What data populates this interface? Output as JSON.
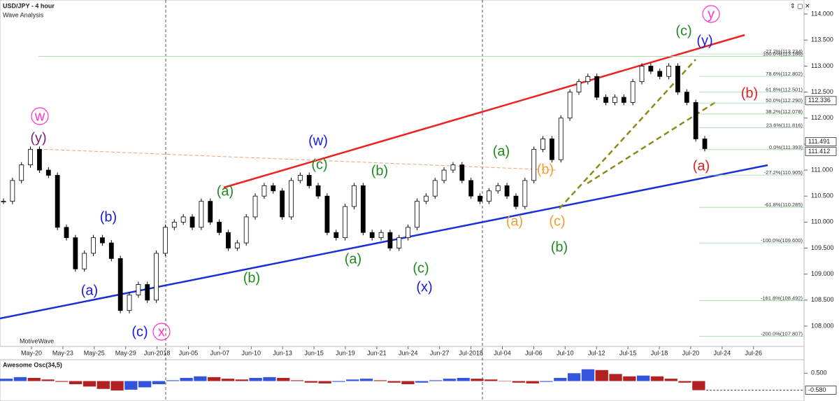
{
  "chart_data": [
    {
      "type": "candlestick",
      "title": "USD/JPY - 4 hour",
      "subtitle": "Wave Analysis",
      "watermark": "MotiveWave",
      "x_labels": [
        "May-20",
        "May-23",
        "May-25",
        "May-29",
        "Jun-2018",
        "Jun-05",
        "Jun-07",
        "Jun-10",
        "Jun-13",
        "Jun-15",
        "Jun-19",
        "Jun-21",
        "Jun-24",
        "Jun-27",
        "Jul-2018",
        "Jul-04",
        "Jul-06",
        "Jul-10",
        "Jul-12",
        "Jul-15",
        "Jul-18",
        "Jul-20",
        "Jul-24",
        "Jul-26"
      ],
      "close": [
        110.4,
        110.8,
        111.1,
        111.4,
        111.0,
        110.9,
        109.9,
        109.7,
        109.1,
        109.4,
        109.7,
        109.6,
        109.3,
        108.3,
        108.6,
        108.8,
        108.5,
        109.4,
        109.9,
        110.0,
        110.1,
        109.9,
        110.4,
        110.0,
        109.8,
        109.5,
        109.6,
        110.1,
        110.5,
        110.7,
        110.6,
        110.1,
        110.8,
        110.9,
        110.7,
        110.5,
        109.8,
        109.7,
        110.3,
        110.7,
        109.8,
        109.7,
        109.8,
        109.5,
        109.7,
        109.9,
        110.4,
        110.5,
        110.8,
        111.0,
        111.1,
        110.8,
        110.5,
        110.4,
        110.6,
        110.7,
        110.5,
        110.3,
        110.8,
        111.4,
        111.6,
        111.2,
        112.0,
        112.5,
        112.7,
        112.8,
        112.4,
        112.3,
        112.4,
        112.3,
        112.7,
        113.0,
        112.9,
        112.8,
        113.0,
        112.5,
        112.3,
        111.6,
        111.412
      ],
      "up_color": "#ffffff",
      "down_color": "#000000",
      "ylim": [
        107.61,
        114.27
      ],
      "yticks": [
        {
          "value": 114,
          "label": "114.000"
        },
        {
          "value": 113.5,
          "label": "113.500"
        },
        {
          "value": 113,
          "label": "113.000"
        },
        {
          "value": 112.5,
          "label": "112.500"
        },
        {
          "value": 112,
          "label": "112.000"
        },
        {
          "value": 111.5,
          "label": "111.500"
        },
        {
          "value": 111,
          "label": "111.000"
        },
        {
          "value": 110.5,
          "label": "110.500"
        },
        {
          "value": 110,
          "label": "110.000"
        },
        {
          "value": 109.5,
          "label": "109.500"
        },
        {
          "value": 109,
          "label": "109.000"
        },
        {
          "value": 108.5,
          "label": "108.500"
        },
        {
          "value": 108,
          "label": "108.000"
        }
      ],
      "price_markers": [
        {
          "value": 112.336,
          "label": "112.336"
        },
        {
          "value": 111.491,
          "label": "111.491"
        },
        {
          "value": 111.412,
          "label": "111.412"
        }
      ],
      "fib_levels": [
        {
          "label": "-27.2%(113.234)",
          "price": 113.234
        },
        {
          "label": "100.0%(113.186)",
          "price": 113.186
        },
        {
          "label": "78.6%(112.802)",
          "price": 112.802
        },
        {
          "label": "61.8%(112.501)",
          "price": 112.501
        },
        {
          "label": "50.0%(112.290)",
          "price": 112.29
        },
        {
          "label": "38.2%(112.078)",
          "price": 112.078
        },
        {
          "label": "23.6%(111.816)",
          "price": 111.816
        },
        {
          "label": "0.0%(111.393)",
          "price": 111.393
        },
        {
          "label": "-27.2%(110.905)",
          "price": 110.905
        },
        {
          "label": "-61.8%(110.285)",
          "price": 110.285
        },
        {
          "label": "-100.0%(109.600)",
          "price": 109.6
        },
        {
          "label": "-161.8%(108.492)",
          "price": 108.492
        },
        {
          "label": "-200.0%(107.807)",
          "price": 107.807
        }
      ],
      "wave_labels": [
        {
          "text": "w",
          "color": "#ff33cc"
        },
        {
          "text": "(y)",
          "color": "#7a1f7a"
        },
        {
          "text": "(b)",
          "color": "#1a1adb"
        },
        {
          "text": "(a)",
          "color": "#1a1adb"
        },
        {
          "text": "(c)",
          "color": "#1a1adb"
        },
        {
          "text": "x",
          "color": "#ff33cc"
        },
        {
          "text": "(a)",
          "color": "#1f8a1f"
        },
        {
          "text": "(b)",
          "color": "#1f8a1f"
        },
        {
          "text": "(w)",
          "color": "#1a1adb"
        },
        {
          "text": "(c)",
          "color": "#1f8a1f"
        },
        {
          "text": "(a)",
          "color": "#1f8a1f"
        },
        {
          "text": "(b)",
          "color": "#1f8a1f"
        },
        {
          "text": "(c)",
          "color": "#1f8a1f"
        },
        {
          "text": "(x)",
          "color": "#1a1adb"
        },
        {
          "text": "(a)",
          "color": "#1f8a1f"
        },
        {
          "text": "(b)",
          "color": "#f0a030"
        },
        {
          "text": "(a)",
          "color": "#f0a030"
        },
        {
          "text": "(c)",
          "color": "#f0a030"
        },
        {
          "text": "(b)",
          "color": "#1f8a1f"
        },
        {
          "text": "(c)",
          "color": "#1f8a1f"
        },
        {
          "text": "(y)",
          "color": "#1a1adb"
        },
        {
          "text": "y",
          "color": "#ff33cc"
        },
        {
          "text": "(b)",
          "color": "#e02020"
        },
        {
          "text": "(a)",
          "color": "#e02020"
        }
      ]
    },
    {
      "type": "bar",
      "title": "Awesome Osc(34,5)",
      "values": [
        0.15,
        0.25,
        0.2,
        0.1,
        -0.05,
        -0.2,
        -0.35,
        -0.5,
        -0.6,
        -0.55,
        -0.4,
        -0.2,
        0.05,
        0.2,
        0.3,
        0.25,
        0.15,
        0.1,
        0.2,
        0.25,
        0.2,
        0.05,
        -0.1,
        -0.15,
        -0.05,
        0.1,
        0.15,
        0.05,
        -0.1,
        -0.2,
        -0.1,
        0.05,
        0.15,
        0.2,
        0.15,
        0.1,
        0.0,
        -0.1,
        -0.15,
        -0.05,
        0.2,
        0.5,
        0.75,
        0.7,
        0.45,
        0.3,
        0.35,
        0.3,
        0.15,
        -0.1,
        -0.58
      ],
      "up_color": "#3355dd",
      "down_color": "#b22222",
      "ylim": [
        -1.27,
        1.36
      ],
      "yticks": [
        {
          "value": 0.5,
          "label": "0.500"
        }
      ],
      "marker": {
        "value": -0.58,
        "label": "-0.580"
      }
    }
  ]
}
